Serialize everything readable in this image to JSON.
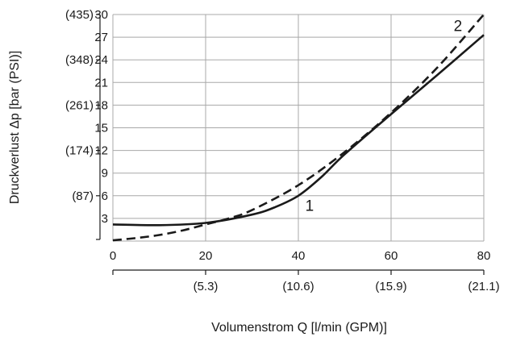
{
  "chart_data": {
    "type": "line",
    "title": "",
    "xlabel": "Volumenstrom Q [l/min (GPM)]",
    "ylabel": "Druckverlust Δp [bar (PSI)]",
    "xlim": [
      0,
      80
    ],
    "ylim": [
      0,
      30
    ],
    "x_ticks": [
      0,
      20,
      40,
      60,
      80
    ],
    "x_ticks_secondary": [
      "(5.3)",
      "(10.6)",
      "(15.9)",
      "(21.1)"
    ],
    "x_ticks_secondary_pos": [
      20,
      40,
      60,
      80
    ],
    "y_ticks": [
      3,
      6,
      9,
      12,
      15,
      18,
      21,
      24,
      27,
      30
    ],
    "y_ticks_secondary": [
      "(87)",
      "(174)",
      "(261)",
      "(348)",
      "(435)"
    ],
    "y_ticks_secondary_pos": [
      6,
      12,
      18,
      24,
      30
    ],
    "grid": true,
    "series": [
      {
        "name": "1",
        "style": "solid",
        "color": "#1a1a1a",
        "x": [
          0,
          10,
          20,
          30,
          35,
          40,
          45,
          50,
          60,
          70,
          80
        ],
        "y": [
          2.2,
          2.1,
          2.4,
          3.5,
          4.5,
          6.0,
          8.5,
          11.5,
          16.8,
          22.0,
          27.3
        ]
      },
      {
        "name": "2",
        "style": "dashed",
        "color": "#1a1a1a",
        "x": [
          0,
          5,
          10,
          15,
          20,
          25,
          30,
          40,
          50,
          60,
          70,
          80
        ],
        "y": [
          0.1,
          0.4,
          0.8,
          1.4,
          2.2,
          3.0,
          4.1,
          7.4,
          11.8,
          17.0,
          23.0,
          30.0
        ]
      }
    ]
  }
}
